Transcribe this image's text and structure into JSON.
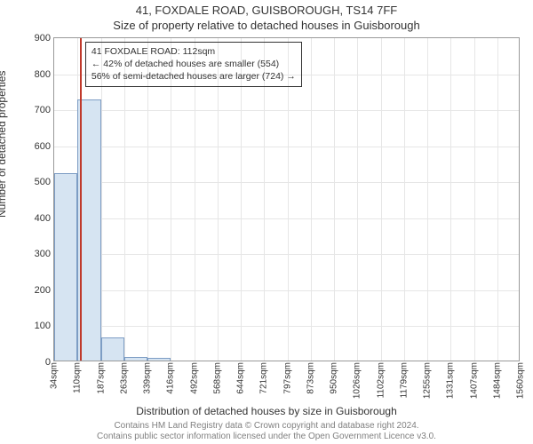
{
  "title_line1": "41, FOXDALE ROAD, GUISBOROUGH, TS14 7FF",
  "title_line2": "Size of property relative to detached houses in Guisborough",
  "ylabel": "Number of detached properties",
  "xlabel": "Distribution of detached houses by size in Guisborough",
  "footer_line1": "Contains HM Land Registry data © Crown copyright and database right 2024.",
  "footer_line2": "Contains public sector information licensed under the Open Government Licence v3.0.",
  "chart": {
    "type": "histogram",
    "background_color": "#ffffff",
    "grid_color": "#e6e6e6",
    "axis_color": "#999999",
    "text_color": "#333333",
    "bar_fill": "#d6e4f2",
    "bar_stroke": "#7d9dc4",
    "marker_color": "#c0392b",
    "ylim": [
      0,
      900
    ],
    "ytick_step": 100,
    "yticks": [
      0,
      100,
      200,
      300,
      400,
      500,
      600,
      700,
      800,
      900
    ],
    "xticks": [
      "34sqm",
      "110sqm",
      "187sqm",
      "263sqm",
      "339sqm",
      "416sqm",
      "492sqm",
      "568sqm",
      "644sqm",
      "721sqm",
      "797sqm",
      "873sqm",
      "950sqm",
      "1026sqm",
      "1102sqm",
      "1179sqm",
      "1255sqm",
      "1331sqm",
      "1407sqm",
      "1484sqm",
      "1560sqm"
    ],
    "values": [
      520,
      725,
      65,
      10,
      8,
      0,
      0,
      0,
      0,
      0,
      0,
      0,
      0,
      0,
      0,
      0,
      0,
      0,
      0,
      0
    ],
    "marker_bin_index": 1,
    "marker_label_in_annotation": "41 FOXDALE ROAD: 112sqm",
    "annotation": {
      "line1": "41 FOXDALE ROAD: 112sqm",
      "line2": "← 42% of detached houses are smaller (554)",
      "line3": "56% of semi-detached houses are larger (724) →"
    }
  },
  "fonts": {
    "title_size_pt": 13,
    "label_size_pt": 12,
    "tick_size_pt": 11,
    "annot_size_pt": 10.5,
    "footer_size_pt": 10
  }
}
